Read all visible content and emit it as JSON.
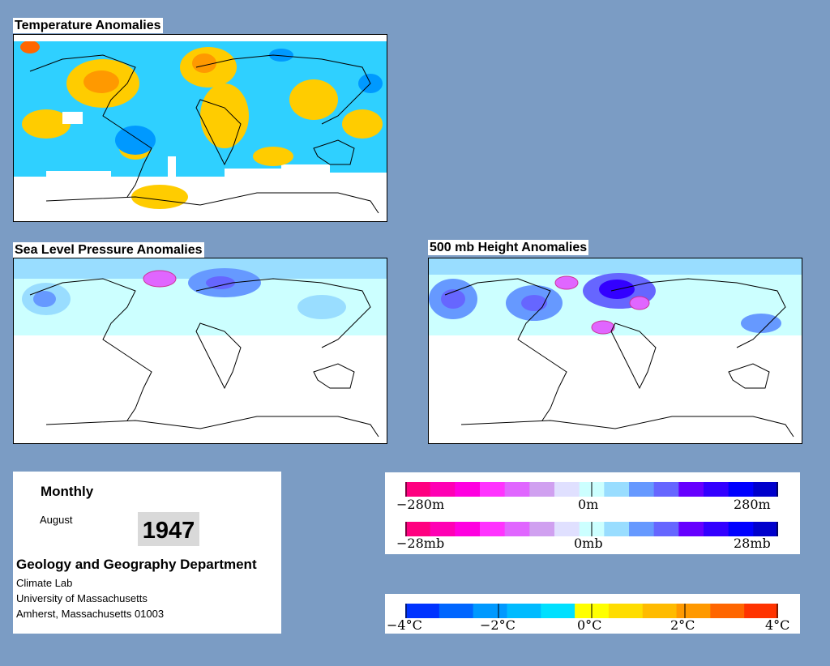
{
  "titles": {
    "temperature": "Temperature Anomalies",
    "pressure": "Sea Level Pressure Anomalies",
    "height": "500 mb Height Anomalies"
  },
  "info": {
    "period": "Monthly",
    "month": "August",
    "year": "1947",
    "department": "Geology and Geography Department",
    "lab": "Climate Lab",
    "university": "University of Massachusetts",
    "address": "Amherst, Massachusetts 01003"
  },
  "height_legend": {
    "colors": [
      "#ff0080",
      "#ff00b4",
      "#ff00e0",
      "#ff33ff",
      "#e066ff",
      "#d0a0f0",
      "#e0e0ff",
      "#ccffff",
      "#99ddff",
      "#6699ff",
      "#6666ff",
      "#6600ff",
      "#3300ff",
      "#0000ff",
      "#0000cc"
    ],
    "labels": [
      "−280m",
      "0m",
      "280m"
    ]
  },
  "pressure_legend": {
    "colors": [
      "#ff0080",
      "#ff00b4",
      "#ff00e0",
      "#ff33ff",
      "#e066ff",
      "#d0a0f0",
      "#e0e0ff",
      "#ccffff",
      "#99ddff",
      "#6699ff",
      "#6666ff",
      "#6600ff",
      "#3300ff",
      "#0000ff",
      "#0000cc"
    ],
    "labels": [
      "−28mb",
      "0mb",
      "28mb"
    ]
  },
  "temp_legend": {
    "colors": [
      "#0033ff",
      "#0066ff",
      "#0099ff",
      "#00bbff",
      "#00e0ff",
      "#ffff00",
      "#ffdd00",
      "#ffbb00",
      "#ff9900",
      "#ff6600",
      "#ff3300"
    ],
    "labels": [
      "−4°C",
      "−2°C",
      "0°C",
      "2°C",
      "4°C"
    ]
  },
  "colors": {
    "background": "#7b9cc4",
    "land_outline": "#000000"
  }
}
